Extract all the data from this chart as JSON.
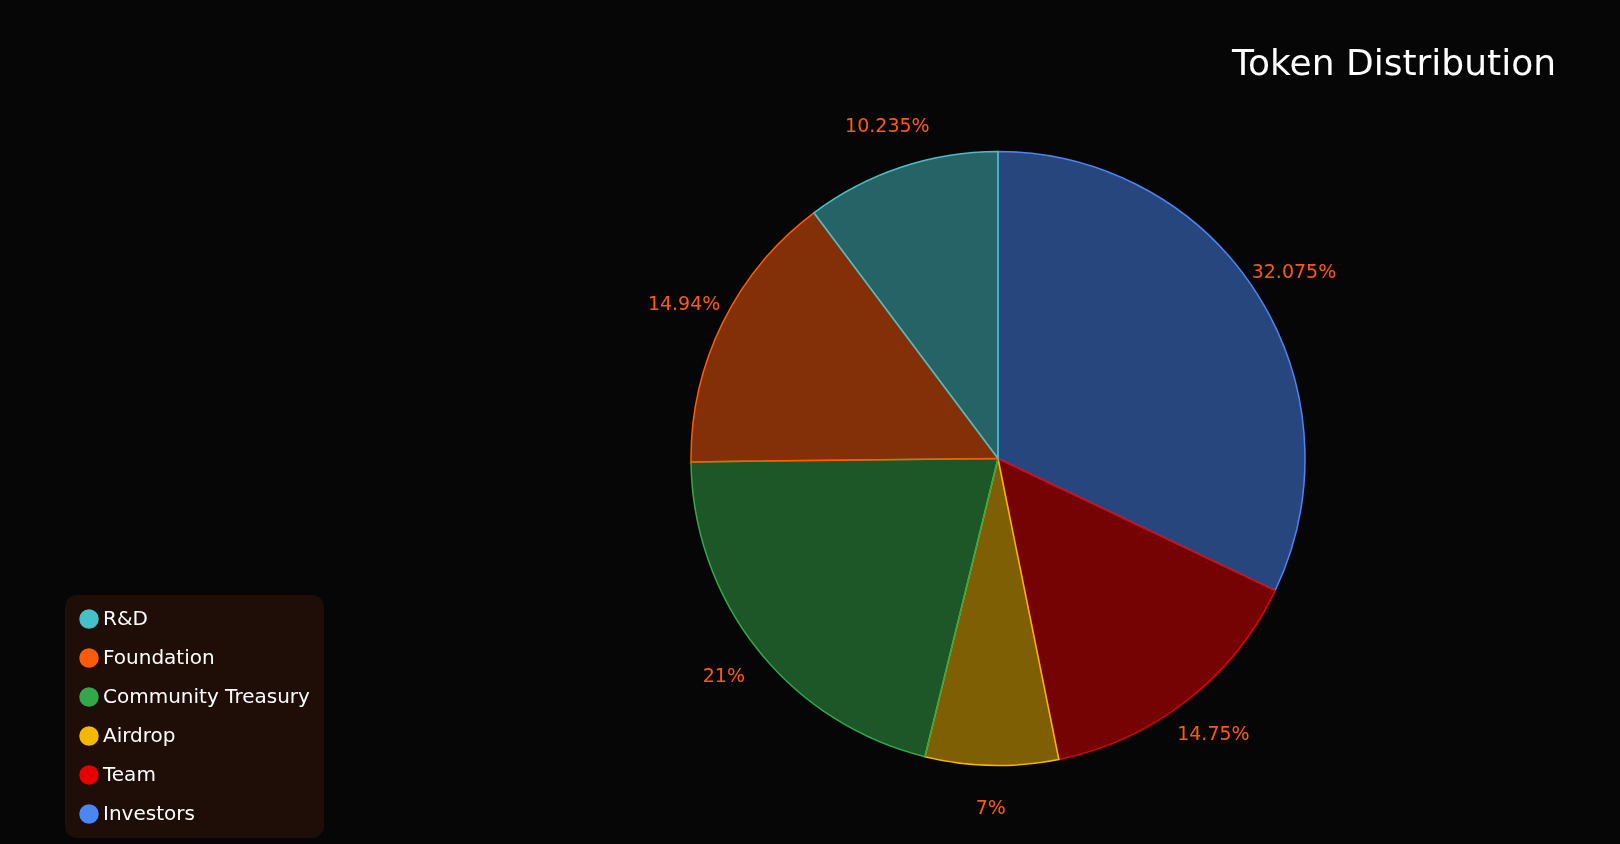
{
  "chart_data": {
    "type": "pie",
    "title": "Token Distribution",
    "categories": [
      "Investors",
      "Team",
      "Airdrop",
      "Community Treasury",
      "Foundation",
      "R&D"
    ],
    "values": [
      32.075,
      14.75,
      7,
      21,
      14.94,
      10.235
    ],
    "value_labels": [
      "32.075%",
      "14.75%",
      "7%",
      "21%",
      "14.94%",
      "10.235%"
    ],
    "colors": [
      "#4a86f5",
      "#e60000",
      "#f5b800",
      "#33a84a",
      "#ff5a0a",
      "#45c0c8"
    ],
    "legend": "bottom left"
  }
}
